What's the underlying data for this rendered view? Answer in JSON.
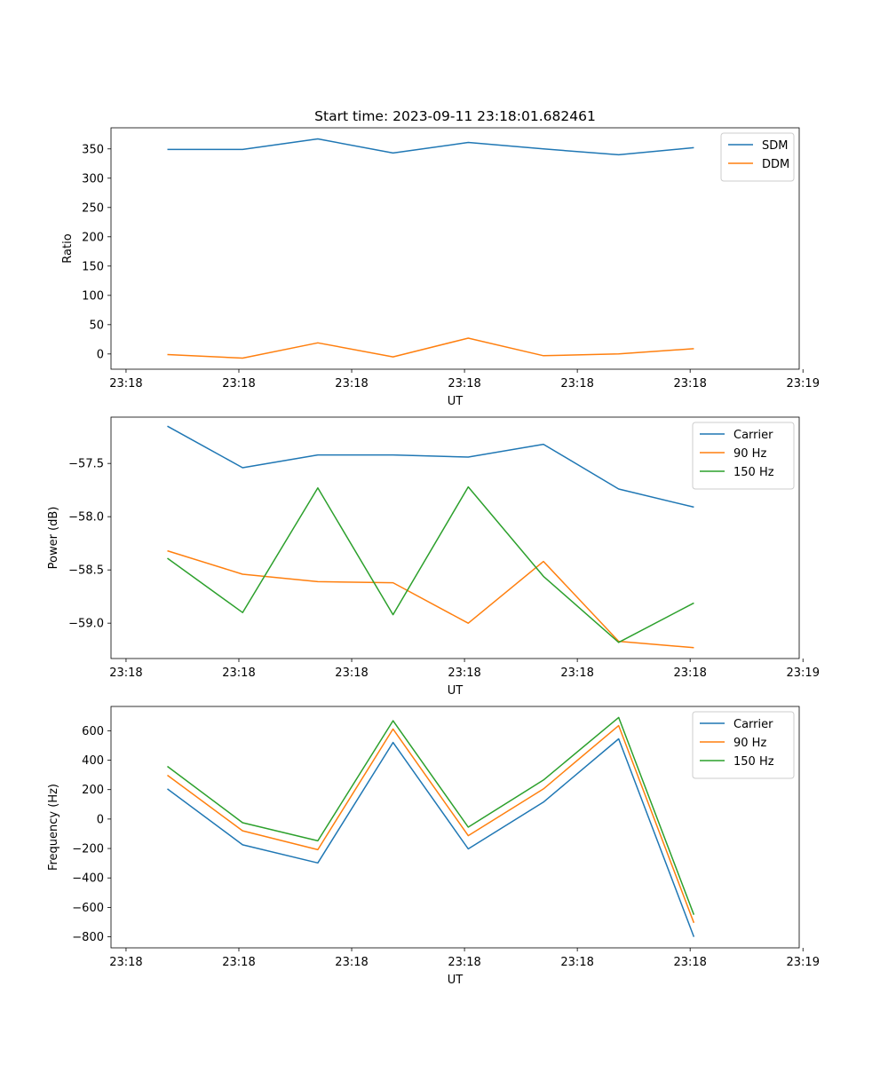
{
  "figure_title": "Start time: 2023-09-11 23:18:01.682461",
  "colors": {
    "blue": "#1f77b4",
    "orange": "#ff7f0e",
    "green": "#2ca02c"
  },
  "chart_data": [
    {
      "type": "line",
      "title": "Start time: 2023-09-11 23:18:01.682461",
      "xlabel": "UT",
      "ylabel": "Ratio",
      "x": [
        1,
        2,
        3,
        4,
        5,
        6,
        7,
        8
      ],
      "xlim": [
        0.25,
        9.4
      ],
      "x_ticks": [
        0.45,
        1.95,
        3.45,
        4.95,
        6.45,
        7.95,
        9.45
      ],
      "x_tick_labels": [
        "23:18",
        "23:18",
        "23:18",
        "23:18",
        "23:18",
        "23:18",
        "23:19"
      ],
      "ylim": [
        -26,
        386
      ],
      "y_ticks": [
        0,
        50,
        100,
        150,
        200,
        250,
        300,
        350
      ],
      "y_tick_labels": [
        "0",
        "50",
        "100",
        "150",
        "200",
        "250",
        "300",
        "350"
      ],
      "legend": "top-right",
      "series": [
        {
          "name": "SDM",
          "color": "#1f77b4",
          "values": [
            349,
            349,
            367,
            343,
            361,
            350,
            340,
            352
          ]
        },
        {
          "name": "DDM",
          "color": "#ff7f0e",
          "values": [
            -1,
            -7,
            19,
            -5,
            27,
            -3,
            0,
            9
          ]
        }
      ]
    },
    {
      "type": "line",
      "title": "",
      "xlabel": "UT",
      "ylabel": "Power (dB)",
      "x": [
        1,
        2,
        3,
        4,
        5,
        6,
        7,
        8
      ],
      "xlim": [
        0.25,
        9.4
      ],
      "x_ticks": [
        0.45,
        1.95,
        3.45,
        4.95,
        6.45,
        7.95,
        9.45
      ],
      "x_tick_labels": [
        "23:18",
        "23:18",
        "23:18",
        "23:18",
        "23:18",
        "23:18",
        "23:19"
      ],
      "ylim": [
        -59.332,
        -57.065
      ],
      "y_ticks": [
        -59.0,
        -58.5,
        -58.0,
        -57.5
      ],
      "y_tick_labels": [
        "−59.0",
        "−58.5",
        "−58.0",
        "−57.5"
      ],
      "legend": "top-right",
      "series": [
        {
          "name": "Carrier",
          "color": "#1f77b4",
          "values": [
            -57.15,
            -57.54,
            -57.42,
            -57.42,
            -57.44,
            -57.32,
            -57.74,
            -57.91
          ]
        },
        {
          "name": "90 Hz",
          "color": "#ff7f0e",
          "values": [
            -58.32,
            -58.54,
            -58.61,
            -58.62,
            -59.0,
            -58.42,
            -59.17,
            -59.23
          ]
        },
        {
          "name": "150 Hz",
          "color": "#2ca02c",
          "values": [
            -58.39,
            -58.9,
            -57.73,
            -58.92,
            -57.72,
            -58.56,
            -59.18,
            -58.81
          ]
        }
      ]
    },
    {
      "type": "line",
      "title": "",
      "xlabel": "UT",
      "ylabel": "Frequency (Hz)",
      "x": [
        1,
        2,
        3,
        4,
        5,
        6,
        7,
        8
      ],
      "xlim": [
        0.25,
        9.4
      ],
      "x_ticks": [
        0.45,
        1.95,
        3.45,
        4.95,
        6.45,
        7.95,
        9.45
      ],
      "x_tick_labels": [
        "23:18",
        "23:18",
        "23:18",
        "23:18",
        "23:18",
        "23:18",
        "23:19"
      ],
      "ylim": [
        -875,
        765
      ],
      "y_ticks": [
        -800,
        -600,
        -400,
        -200,
        0,
        200,
        400,
        600
      ],
      "y_tick_labels": [
        "−800",
        "−600",
        "−400",
        "−200",
        "0",
        "200",
        "400",
        "600"
      ],
      "legend": "top-right",
      "series": [
        {
          "name": "Carrier",
          "color": "#1f77b4",
          "values": [
            205,
            -175,
            -298,
            520,
            -203,
            115,
            545,
            -800
          ]
        },
        {
          "name": "90 Hz",
          "color": "#ff7f0e",
          "values": [
            298,
            -80,
            -208,
            612,
            -113,
            205,
            635,
            -705
          ]
        },
        {
          "name": "150 Hz",
          "color": "#2ca02c",
          "values": [
            358,
            -25,
            -148,
            668,
            -55,
            265,
            690,
            -650
          ]
        }
      ]
    }
  ]
}
